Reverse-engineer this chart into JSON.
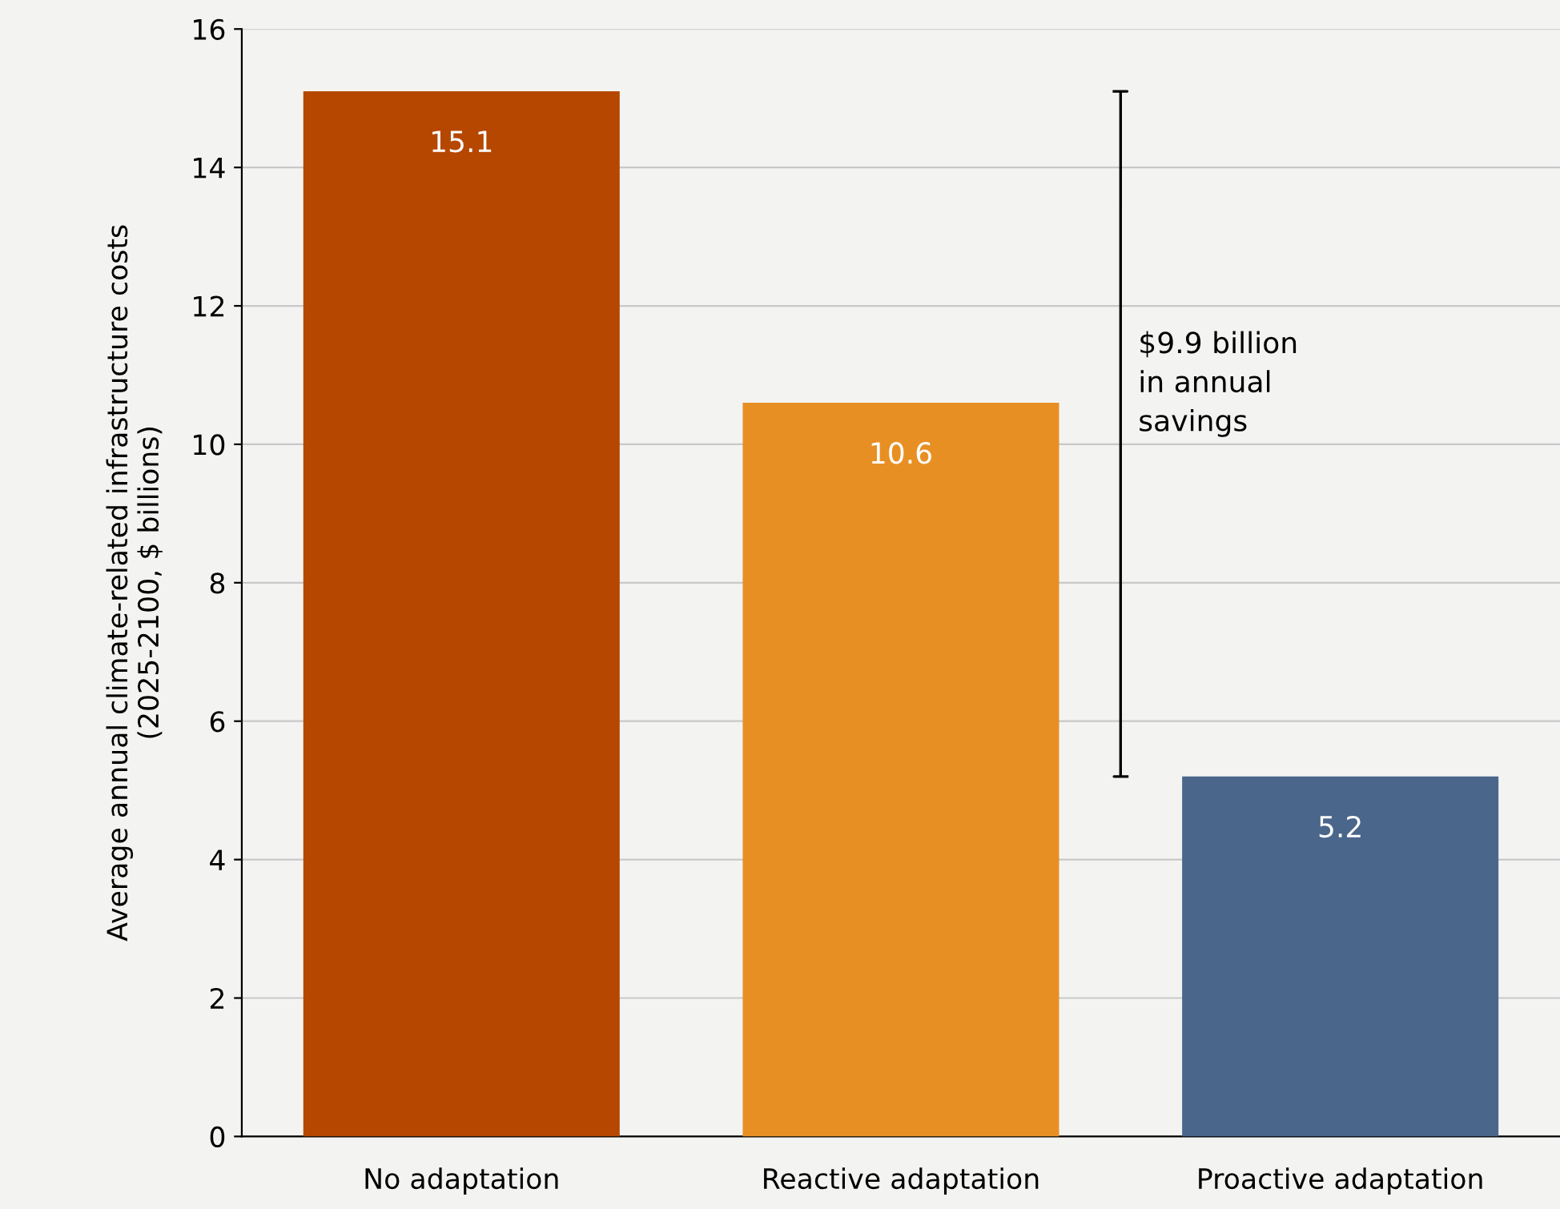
{
  "chart_data": {
    "type": "bar",
    "ylabel": "Average annual climate-related infrastructure costs\n(2025-2100, $ billions)",
    "categories": [
      "No adaptation",
      "Reactive adaptation",
      "Proactive adaptation"
    ],
    "values": [
      15.1,
      10.6,
      5.2
    ],
    "colors": [
      "#b54700",
      "#e88f24",
      "#4a668a"
    ],
    "ylim": [
      0,
      16
    ],
    "yticks": [
      0,
      2,
      4,
      6,
      8,
      10,
      12,
      14,
      16
    ],
    "grid": "y",
    "data_labels": true,
    "annotations": [
      "$9.9 billion\nin annual\nsavings"
    ]
  }
}
